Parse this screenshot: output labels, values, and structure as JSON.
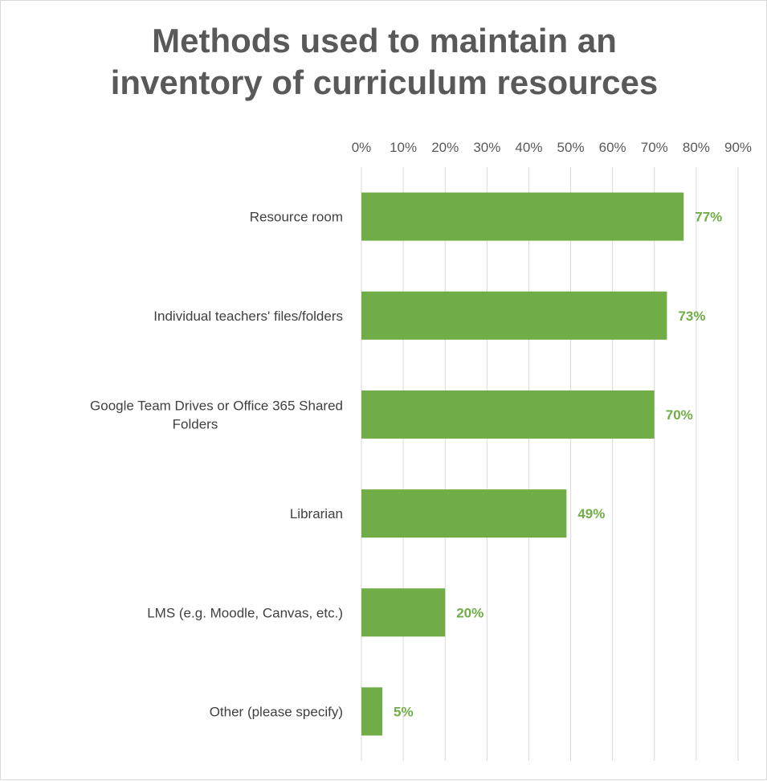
{
  "chart_data": {
    "type": "bar",
    "orientation": "horizontal",
    "title": [
      "Methods used to maintain an",
      "inventory of curriculum resources"
    ],
    "categories": [
      [
        "Resource room"
      ],
      [
        "Individual teachers' files/folders"
      ],
      [
        "Google Team Drives or Office 365 Shared",
        "Folders"
      ],
      [
        "Librarian"
      ],
      [
        "LMS (e.g. Moodle, Canvas, etc.)"
      ],
      [
        "Other (please specify)"
      ]
    ],
    "values": [
      77,
      73,
      70,
      49,
      20,
      5
    ],
    "data_labels": [
      "77%",
      "73%",
      "70%",
      "49%",
      "20%",
      "5%"
    ],
    "x_ticks": [
      "0%",
      "10%",
      "20%",
      "30%",
      "40%",
      "50%",
      "60%",
      "70%",
      "80%",
      "90%"
    ],
    "xlim": [
      0,
      90
    ],
    "x_axis_position": "top",
    "grid": true,
    "legend": "none",
    "bar_color": "#70ad47",
    "label_color": "#70ad47",
    "grid_color": "#d9d9d9"
  }
}
